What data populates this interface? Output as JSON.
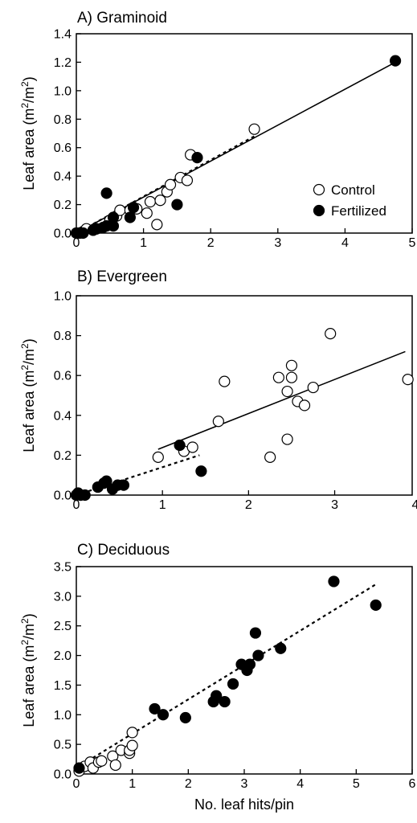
{
  "figure": {
    "xlabel": "No. leaf hits/pin",
    "ylabel_main": "Leaf area (m",
    "ylabel_sup1": "2",
    "ylabel_slash": "/m",
    "ylabel_sup2": "2",
    "ylabel_close": ")"
  },
  "legend": {
    "control": "Control",
    "fertilized": "Fertilized"
  },
  "chart_data": [
    {
      "type": "scatter",
      "title": "A) Graminoid",
      "xlim": [
        0,
        5
      ],
      "ylim": [
        0,
        1.4
      ],
      "xticks": [
        0,
        1,
        2,
        3,
        4,
        5
      ],
      "yticks": [
        0.0,
        0.2,
        0.4,
        0.6,
        0.8,
        1.0,
        1.2,
        1.4
      ],
      "xtick_labels": [
        "0",
        "1",
        "2",
        "3",
        "4",
        "5"
      ],
      "ytick_labels": [
        "0.0",
        "0.2",
        "0.4",
        "0.6",
        "0.8",
        "1.0",
        "1.2",
        "1.4"
      ],
      "series": [
        {
          "name": "Control",
          "marker": "open-circle",
          "points": [
            [
              0.05,
              0.0
            ],
            [
              0.1,
              0.01
            ],
            [
              0.15,
              0.03
            ],
            [
              0.3,
              0.03
            ],
            [
              0.5,
              0.09
            ],
            [
              0.6,
              0.12
            ],
            [
              0.65,
              0.16
            ],
            [
              0.8,
              0.16
            ],
            [
              0.9,
              0.17
            ],
            [
              1.05,
              0.14
            ],
            [
              1.1,
              0.22
            ],
            [
              1.2,
              0.06
            ],
            [
              1.25,
              0.23
            ],
            [
              1.35,
              0.29
            ],
            [
              1.4,
              0.34
            ],
            [
              1.55,
              0.39
            ],
            [
              1.65,
              0.37
            ],
            [
              1.7,
              0.55
            ],
            [
              2.65,
              0.73
            ]
          ]
        },
        {
          "name": "Fertilized",
          "marker": "filled-circle",
          "points": [
            [
              0.0,
              0.0
            ],
            [
              0.05,
              0.0
            ],
            [
              0.1,
              0.0
            ],
            [
              0.25,
              0.02
            ],
            [
              0.3,
              0.03
            ],
            [
              0.4,
              0.04
            ],
            [
              0.45,
              0.05
            ],
            [
              0.55,
              0.05
            ],
            [
              0.55,
              0.11
            ],
            [
              0.45,
              0.28
            ],
            [
              0.8,
              0.11
            ],
            [
              0.85,
              0.18
            ],
            [
              1.5,
              0.2
            ],
            [
              1.8,
              0.53
            ],
            [
              4.75,
              1.21
            ]
          ]
        }
      ],
      "fits": [
        {
          "style": "solid",
          "x": [
            0.0,
            4.75
          ],
          "y": [
            0.0,
            1.2
          ]
        },
        {
          "style": "dashed",
          "x": [
            0.0,
            2.65
          ],
          "y": [
            0.0,
            0.68
          ]
        }
      ]
    },
    {
      "type": "scatter",
      "title": "B) Evergreen",
      "xlim": [
        0,
        3.9
      ],
      "ylim": [
        0,
        1.0
      ],
      "xticks": [
        0,
        1,
        2,
        3,
        4
      ],
      "yticks": [
        0.0,
        0.2,
        0.4,
        0.6,
        0.8,
        1.0
      ],
      "xtick_labels": [
        "0",
        "1",
        "2",
        "3",
        "4"
      ],
      "ytick_labels": [
        "0.0",
        "0.2",
        "0.4",
        "0.6",
        "0.8",
        "1.0"
      ],
      "series": [
        {
          "name": "Control",
          "marker": "open-circle",
          "points": [
            [
              0.0,
              0.0
            ],
            [
              0.05,
              0.0
            ],
            [
              0.95,
              0.19
            ],
            [
              1.25,
              0.22
            ],
            [
              1.35,
              0.24
            ],
            [
              1.65,
              0.37
            ],
            [
              1.72,
              0.57
            ],
            [
              2.25,
              0.19
            ],
            [
              2.35,
              0.59
            ],
            [
              2.45,
              0.52
            ],
            [
              2.45,
              0.28
            ],
            [
              2.5,
              0.59
            ],
            [
              2.5,
              0.65
            ],
            [
              2.57,
              0.47
            ],
            [
              2.65,
              0.45
            ],
            [
              2.75,
              0.54
            ],
            [
              2.95,
              0.81
            ],
            [
              3.85,
              0.58
            ]
          ]
        },
        {
          "name": "Fertilized",
          "marker": "filled-circle",
          "points": [
            [
              0.0,
              0.0
            ],
            [
              0.02,
              0.01
            ],
            [
              0.05,
              0.0
            ],
            [
              0.1,
              0.0
            ],
            [
              0.25,
              0.04
            ],
            [
              0.32,
              0.06
            ],
            [
              0.35,
              0.07
            ],
            [
              0.42,
              0.03
            ],
            [
              0.48,
              0.05
            ],
            [
              0.55,
              0.05
            ],
            [
              1.2,
              0.25
            ],
            [
              1.45,
              0.12
            ]
          ]
        }
      ],
      "fits": [
        {
          "style": "solid",
          "x": [
            0.95,
            3.82
          ],
          "y": [
            0.23,
            0.72
          ]
        },
        {
          "style": "dashed",
          "x": [
            0.0,
            1.43
          ],
          "y": [
            0.0,
            0.2
          ]
        }
      ]
    },
    {
      "type": "scatter",
      "title": "C) Deciduous",
      "xlim": [
        0,
        6
      ],
      "ylim": [
        0,
        3.5
      ],
      "xticks": [
        0,
        1,
        2,
        3,
        4,
        5,
        6
      ],
      "yticks": [
        0.0,
        0.5,
        1.0,
        1.5,
        2.0,
        2.5,
        3.0,
        3.5
      ],
      "xtick_labels": [
        "0",
        "1",
        "2",
        "3",
        "4",
        "5",
        "6"
      ],
      "ytick_labels": [
        "0.0",
        "0.5",
        "1.0",
        "1.5",
        "2.0",
        "2.5",
        "3.0",
        "3.5"
      ],
      "series": [
        {
          "name": "Control",
          "marker": "open-circle",
          "points": [
            [
              0.05,
              0.05
            ],
            [
              0.15,
              0.13
            ],
            [
              0.25,
              0.2
            ],
            [
              0.3,
              0.1
            ],
            [
              0.4,
              0.2
            ],
            [
              0.45,
              0.22
            ],
            [
              0.65,
              0.3
            ],
            [
              0.7,
              0.15
            ],
            [
              0.8,
              0.4
            ],
            [
              0.95,
              0.35
            ],
            [
              0.95,
              0.4
            ],
            [
              1.0,
              0.48
            ],
            [
              1.0,
              0.7
            ]
          ]
        },
        {
          "name": "Fertilized",
          "marker": "filled-circle",
          "points": [
            [
              0.05,
              0.1
            ],
            [
              1.4,
              1.1
            ],
            [
              1.55,
              1.0
            ],
            [
              1.95,
              0.95
            ],
            [
              2.45,
              1.22
            ],
            [
              2.5,
              1.32
            ],
            [
              2.65,
              1.22
            ],
            [
              2.8,
              1.52
            ],
            [
              2.95,
              1.85
            ],
            [
              3.05,
              1.75
            ],
            [
              3.1,
              1.85
            ],
            [
              3.2,
              2.38
            ],
            [
              3.25,
              2.0
            ],
            [
              3.65,
              2.12
            ],
            [
              4.6,
              3.25
            ],
            [
              5.35,
              2.85
            ]
          ]
        }
      ],
      "fits": [
        {
          "style": "dashed",
          "x": [
            0.0,
            5.35
          ],
          "y": [
            0.1,
            3.2
          ]
        }
      ]
    }
  ]
}
